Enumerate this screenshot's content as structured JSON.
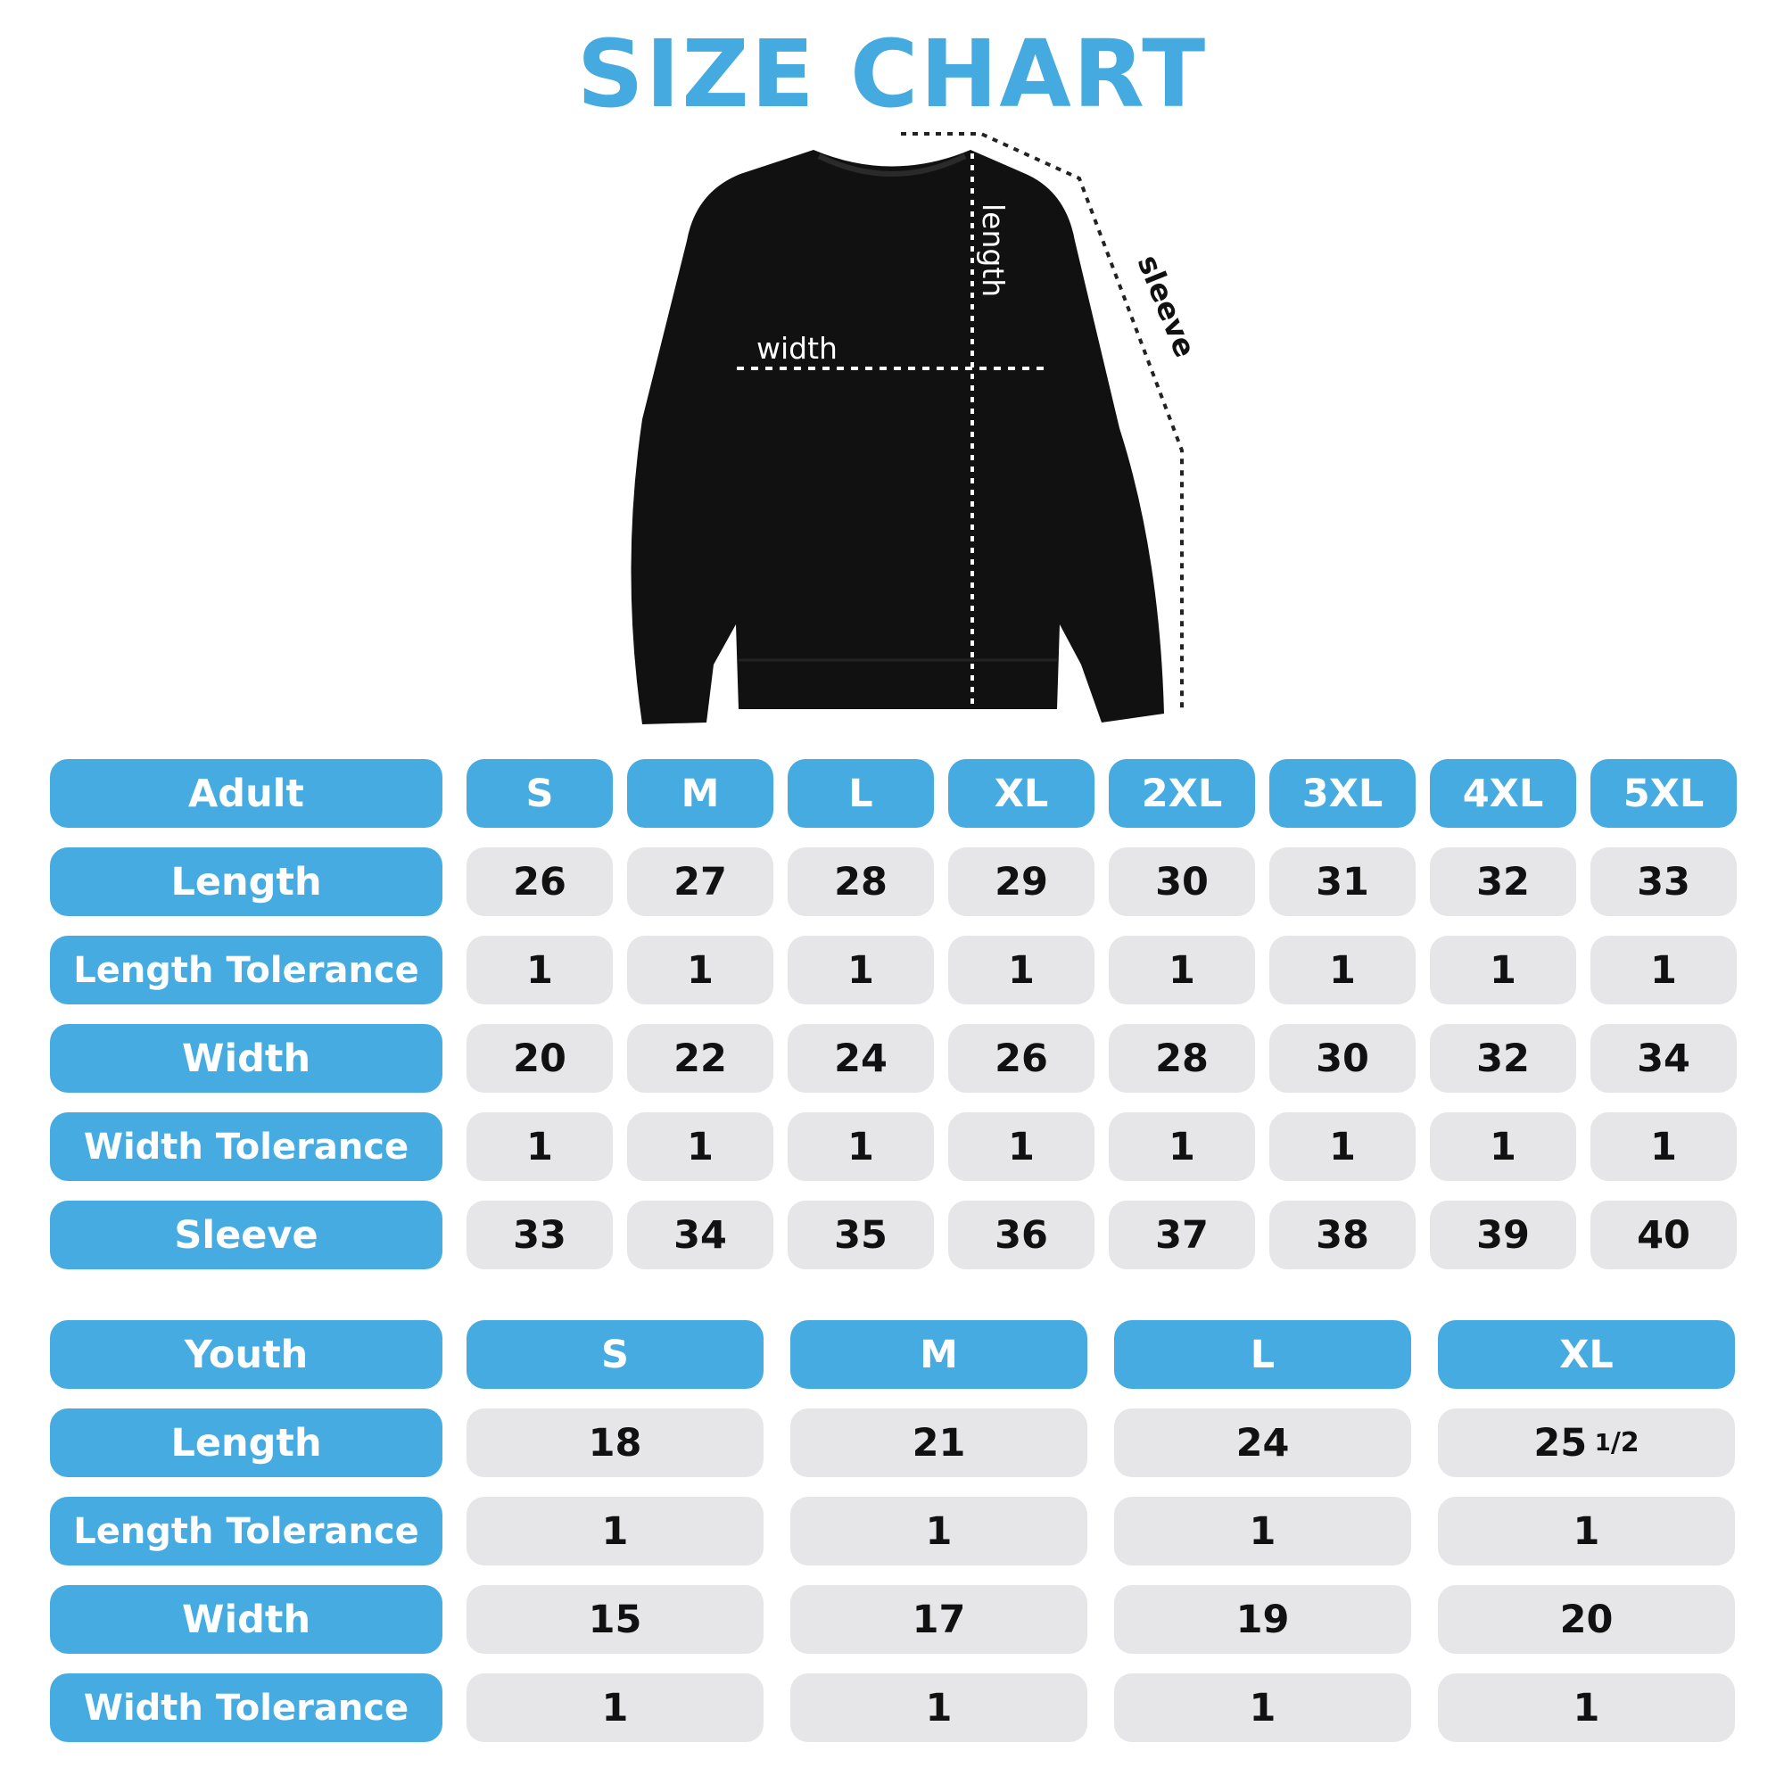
{
  "title": "SIZE CHART",
  "garment": {
    "labels": {
      "length": "length",
      "width": "width",
      "sleeve": "sleeve"
    },
    "colors": {
      "garment": "#111111",
      "guide": "#222222"
    }
  },
  "colors": {
    "accent": "#46abe0",
    "cell": "#e6e6e8",
    "text": "#111111"
  },
  "adult": {
    "header": "Adult",
    "sizes": [
      "S",
      "M",
      "L",
      "XL",
      "2XL",
      "3XL",
      "4XL",
      "5XL"
    ],
    "rows": [
      {
        "label": "Length",
        "values": [
          "26",
          "27",
          "28",
          "29",
          "30",
          "31",
          "32",
          "33"
        ]
      },
      {
        "label": "Length Tolerance",
        "values": [
          "1",
          "1",
          "1",
          "1",
          "1",
          "1",
          "1",
          "1"
        ]
      },
      {
        "label": "Width",
        "values": [
          "20",
          "22",
          "24",
          "26",
          "28",
          "30",
          "32",
          "34"
        ]
      },
      {
        "label": "Width Tolerance",
        "values": [
          "1",
          "1",
          "1",
          "1",
          "1",
          "1",
          "1",
          "1"
        ]
      },
      {
        "label": "Sleeve",
        "values": [
          "33",
          "34",
          "35",
          "36",
          "37",
          "38",
          "39",
          "40"
        ]
      }
    ]
  },
  "youth": {
    "header": "Youth",
    "sizes": [
      "S",
      "M",
      "L",
      "XL"
    ],
    "rows": [
      {
        "label": "Length",
        "values": [
          "18",
          "21",
          "24",
          "25 1/2"
        ]
      },
      {
        "label": "Length Tolerance",
        "values": [
          "1",
          "1",
          "1",
          "1"
        ]
      },
      {
        "label": "Width",
        "values": [
          "15",
          "17",
          "19",
          "20"
        ]
      },
      {
        "label": "Width Tolerance",
        "values": [
          "1",
          "1",
          "1",
          "1"
        ]
      }
    ]
  }
}
